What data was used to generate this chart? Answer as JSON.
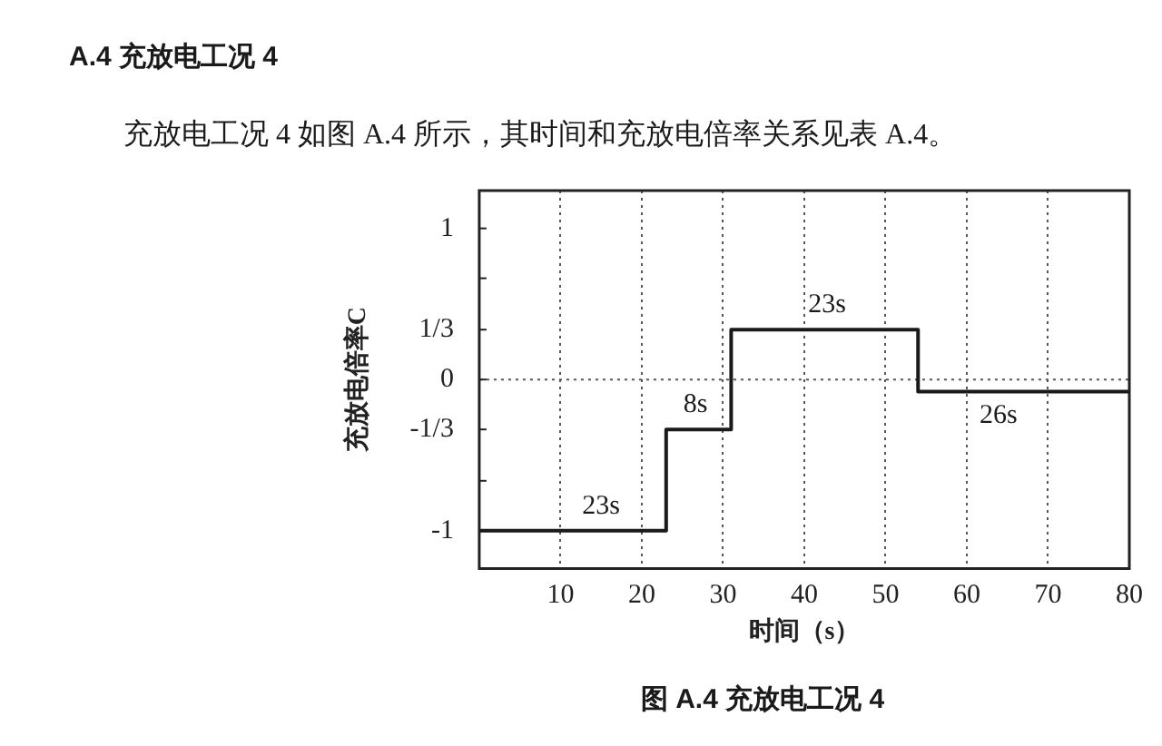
{
  "chart_data": {
    "type": "step",
    "title": "A.4 充放电工况 4",
    "subtitle": "充放电工况 4 如图 A.4 所示，其时间和充放电倍率关系见表 A.4。",
    "xlabel": "时间（s）",
    "ylabel": "充放电倍率C",
    "x": [
      0,
      23,
      31,
      54,
      80
    ],
    "series": [
      {
        "color": "#1a1a1a",
        "values": [
          -1,
          -0.33,
          0.33,
          -0.08,
          -0.08
        ]
      }
    ],
    "xlim": [
      0,
      80
    ],
    "xticks": [
      10,
      20,
      30,
      40,
      50,
      60,
      70,
      80
    ],
    "ylim": [
      -1.25,
      1.25
    ],
    "yticks": [
      -1,
      {
        "value": -0.67,
        "label": null
      },
      {
        "value": -0.33,
        "label": "-1/3"
      },
      0,
      {
        "value": 0.33,
        "label": "1/3"
      },
      {
        "value": 0.67,
        "label": null
      },
      1
    ],
    "grid": "x",
    "ref_lines": [
      {
        "axis": "y",
        "value": 0,
        "line_style": "dotted",
        "color": "#555555"
      }
    ],
    "annotations": [
      {
        "text": "23s",
        "x": 15,
        "y": -1
      },
      {
        "text": "8s",
        "x": 26.6,
        "y": -0.33
      },
      {
        "text": "23s",
        "x": 42.8,
        "y": 0.33
      },
      {
        "text": "26s",
        "x": 63.9,
        "y": -0.08
      },
      "图 A.4 充放电工况 4"
    ]
  }
}
